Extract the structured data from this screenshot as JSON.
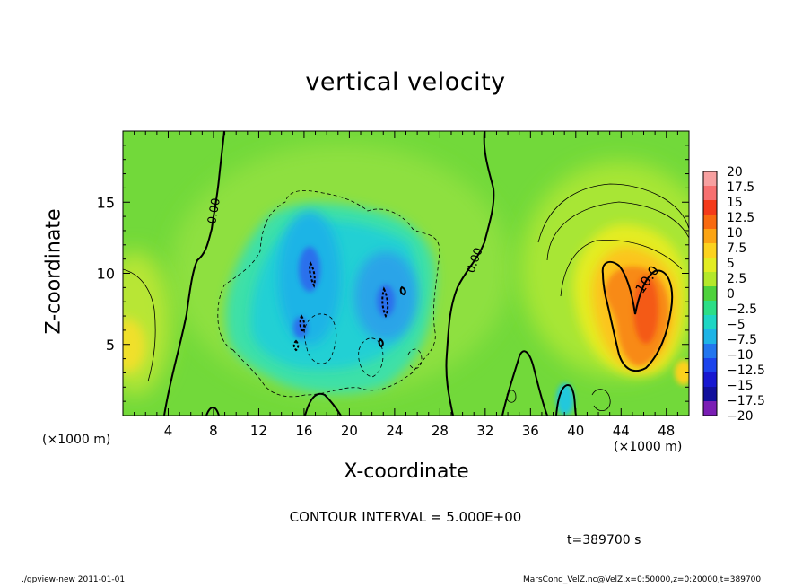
{
  "chart_data": {
    "type": "heatmap",
    "title": "vertical velocity",
    "xlabel": "X-coordinate",
    "ylabel": "Z-coordinate",
    "x_unit_label": "(×1000 m)",
    "y_unit_label": "(×1000 m)",
    "xlim": [
      0,
      50
    ],
    "ylim": [
      0,
      20
    ],
    "x_ticks": [
      4,
      8,
      12,
      16,
      20,
      24,
      28,
      32,
      36,
      40,
      44,
      48
    ],
    "y_ticks": [
      5,
      10,
      15
    ],
    "colorbar": {
      "labels": [
        "20",
        "17.5",
        "15",
        "12.5",
        "10",
        "7.5",
        "5",
        "2.5",
        "0",
        "−2.5",
        "−5",
        "−7.5",
        "−10",
        "−12.5",
        "−15",
        "−17.5",
        "−20"
      ],
      "colors": [
        "#f7a0a0",
        "#f77070",
        "#f43a1a",
        "#f86a10",
        "#fca414",
        "#fcd21e",
        "#e2ec22",
        "#b4e82a",
        "#4ed23c",
        "#2cde86",
        "#1ed6c4",
        "#1eb4e6",
        "#2276ee",
        "#1c44ec",
        "#1818d0",
        "#12109c",
        "#7a1eb4"
      ]
    },
    "contour_labels": [
      "0.00",
      "0.00",
      "10.0"
    ],
    "contour_interval": "CONTOUR INTERVAL = 5.000E+00",
    "time": "t=389700 s"
  },
  "footer": {
    "left": "./gpview-new  2011-01-01",
    "right": "MarsCond_VelZ.nc@VelZ,x=0:50000,z=0:20000,t=389700"
  },
  "colors": {
    "background_field": "#72d93a",
    "updraft_core": "#f86a10",
    "downdraft_core": "#1eb4e6"
  }
}
